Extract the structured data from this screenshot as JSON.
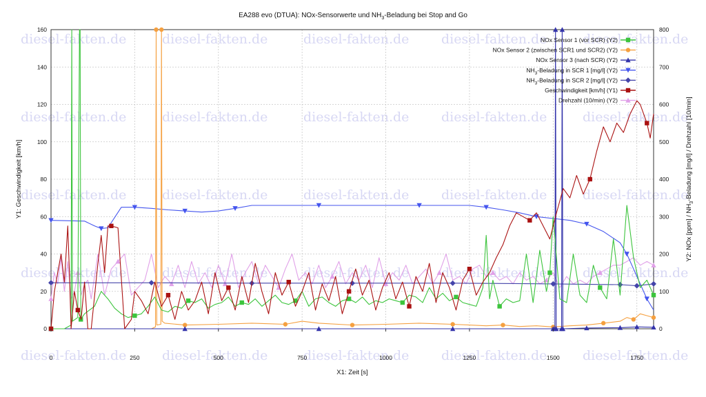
{
  "chart_data": {
    "type": "line",
    "title": "EA288 evo (DTUA): NOx-Sensorwerte und NH3-Beladung bei Stop and Go",
    "xlabel": "X1: Zeit [s]",
    "ylabel_left": "Y1: Geschwindigkeit [km/h]",
    "ylabel_right": "Y2: NOx [ppm] / NH3-Beladung [mg/l] / Drehzahl [10/min]",
    "xlim": [
      0,
      1800
    ],
    "ylim_left": [
      0,
      160
    ],
    "ylim_right": [
      0,
      800
    ],
    "x_ticks": [
      0,
      250,
      500,
      750,
      1000,
      1250,
      1500,
      1750
    ],
    "y_left_ticks": [
      0,
      20,
      40,
      60,
      80,
      100,
      120,
      140,
      160
    ],
    "y_right_ticks": [
      0,
      100,
      200,
      300,
      400,
      500,
      600,
      700,
      800
    ],
    "grid": true,
    "legend_position": "top-right",
    "watermark": "diesel-fakten.de",
    "series": [
      {
        "name": "NOx Sensor 1 (vor SCR) (Y2)",
        "axis": "right",
        "color": "#3cc43c",
        "marker": "square",
        "x": [
          0,
          40,
          60,
          62,
          64,
          80,
          85,
          87,
          89,
          100,
          130,
          150,
          170,
          190,
          210,
          230,
          250,
          270,
          290,
          310,
          330,
          350,
          370,
          390,
          410,
          430,
          450,
          470,
          490,
          510,
          530,
          550,
          570,
          590,
          610,
          630,
          650,
          670,
          690,
          710,
          730,
          750,
          770,
          790,
          810,
          830,
          850,
          870,
          890,
          910,
          930,
          950,
          970,
          990,
          1010,
          1030,
          1050,
          1070,
          1090,
          1110,
          1130,
          1150,
          1170,
          1190,
          1210,
          1230,
          1250,
          1270,
          1290,
          1300,
          1310,
          1320,
          1340,
          1360,
          1380,
          1400,
          1420,
          1440,
          1460,
          1480,
          1490,
          1500,
          1520,
          1540,
          1560,
          1580,
          1600,
          1620,
          1640,
          1660,
          1680,
          1700,
          1720,
          1740,
          1760,
          1780,
          1800
        ],
        "y": [
          0,
          0,
          10,
          800,
          20,
          30,
          800,
          800,
          25,
          40,
          60,
          100,
          80,
          55,
          40,
          30,
          35,
          40,
          60,
          85,
          50,
          45,
          60,
          55,
          75,
          70,
          80,
          55,
          65,
          70,
          85,
          60,
          70,
          65,
          80,
          60,
          75,
          90,
          70,
          65,
          75,
          100,
          60,
          80,
          85,
          70,
          60,
          75,
          80,
          70,
          85,
          65,
          75,
          70,
          80,
          75,
          70,
          90,
          85,
          70,
          110,
          80,
          95,
          75,
          85,
          70,
          65,
          60,
          110,
          250,
          80,
          130,
          60,
          80,
          70,
          75,
          200,
          70,
          210,
          100,
          150,
          300,
          80,
          70,
          200,
          90,
          70,
          170,
          110,
          80,
          240,
          90,
          330,
          190,
          110,
          130,
          90
        ]
      },
      {
        "name": "NOx Sensor 2 (zwischen SCR1 und SCR2) (Y2)",
        "axis": "right",
        "color": "#f5a040",
        "marker": "circle",
        "x": [
          0,
          300,
          312,
          314,
          316,
          328,
          330,
          332,
          340,
          400,
          500,
          600,
          700,
          750,
          800,
          900,
          1000,
          1100,
          1200,
          1250,
          1300,
          1350,
          1400,
          1450,
          1500,
          1550,
          1600,
          1650,
          1700,
          1720,
          1740,
          1760,
          1780,
          1800
        ],
        "y": [
          0,
          0,
          5,
          800,
          10,
          12,
          800,
          20,
          15,
          10,
          12,
          15,
          12,
          20,
          15,
          10,
          12,
          15,
          12,
          10,
          8,
          10,
          6,
          8,
          5,
          8,
          10,
          15,
          20,
          30,
          25,
          40,
          35,
          30
        ]
      },
      {
        "name": "NOx Sensor 3 (nach SCR) (Y2)",
        "axis": "right",
        "color": "#3333aa",
        "marker": "triangle-up",
        "x": [
          0,
          400,
          800,
          1200,
          1500,
          1505,
          1507,
          1509,
          1525,
          1527,
          1529,
          1600,
          1700,
          1750,
          1800
        ],
        "y": [
          0,
          0,
          0,
          0,
          0,
          0,
          800,
          0,
          0,
          800,
          0,
          2,
          3,
          5,
          4
        ]
      },
      {
        "name": "NH3-Beladung in SCR 1 [mg/l] (Y2)",
        "axis": "right",
        "color": "#4455ee",
        "marker": "triangle-down",
        "x": [
          0,
          100,
          130,
          150,
          170,
          210,
          250,
          300,
          350,
          400,
          450,
          500,
          550,
          600,
          700,
          800,
          900,
          1000,
          1100,
          1200,
          1250,
          1300,
          1350,
          1400,
          1450,
          1500,
          1550,
          1600,
          1650,
          1700,
          1720,
          1740,
          1760,
          1780,
          1800
        ],
        "y": [
          290,
          288,
          275,
          268,
          270,
          325,
          325,
          322,
          318,
          315,
          312,
          315,
          322,
          330,
          330,
          330,
          330,
          330,
          330,
          330,
          330,
          325,
          318,
          310,
          300,
          295,
          290,
          280,
          260,
          230,
          200,
          160,
          120,
          80,
          50
        ]
      },
      {
        "name": "NH3-Beladung in SCR 2 [mg/l] (Y2)",
        "axis": "right",
        "color": "#4444aa",
        "marker": "diamond",
        "x": [
          0,
          300,
          600,
          900,
          1200,
          1500,
          1700,
          1750,
          1800
        ],
        "y": [
          123,
          123,
          122,
          122,
          122,
          120,
          118,
          115,
          120
        ]
      },
      {
        "name": "Geschwindigkeit [km/h] (Y1)",
        "axis": "left",
        "color": "#aa1111",
        "marker": "square",
        "x": [
          0,
          10,
          20,
          30,
          40,
          50,
          55,
          60,
          70,
          80,
          90,
          100,
          110,
          120,
          140,
          150,
          160,
          170,
          180,
          200,
          220,
          240,
          250,
          270,
          290,
          310,
          330,
          350,
          370,
          390,
          410,
          430,
          450,
          470,
          490,
          510,
          530,
          550,
          570,
          590,
          610,
          630,
          650,
          670,
          690,
          710,
          730,
          750,
          770,
          790,
          810,
          830,
          850,
          870,
          890,
          910,
          930,
          950,
          970,
          990,
          1010,
          1030,
          1050,
          1070,
          1090,
          1110,
          1130,
          1150,
          1170,
          1190,
          1210,
          1230,
          1250,
          1270,
          1290,
          1310,
          1330,
          1350,
          1370,
          1390,
          1410,
          1430,
          1450,
          1470,
          1490,
          1510,
          1530,
          1550,
          1570,
          1590,
          1610,
          1630,
          1650,
          1670,
          1690,
          1710,
          1730,
          1750,
          1760,
          1780,
          1790,
          1800
        ],
        "y": [
          0,
          20,
          30,
          40,
          25,
          55,
          30,
          0,
          20,
          10,
          5,
          25,
          0,
          0,
          35,
          50,
          30,
          55,
          55,
          54,
          0,
          5,
          20,
          15,
          8,
          25,
          12,
          18,
          5,
          20,
          10,
          15,
          25,
          8,
          30,
          15,
          22,
          10,
          28,
          14,
          35,
          20,
          8,
          30,
          18,
          25,
          12,
          20,
          30,
          10,
          24,
          15,
          28,
          8,
          20,
          32,
          18,
          26,
          10,
          22,
          30,
          16,
          25,
          12,
          28,
          20,
          35,
          14,
          30,
          22,
          10,
          26,
          32,
          18,
          25,
          30,
          38,
          45,
          55,
          62,
          60,
          58,
          62,
          55,
          48,
          62,
          75,
          70,
          82,
          72,
          80,
          95,
          108,
          100,
          110,
          105,
          115,
          122,
          120,
          110,
          102,
          115
        ]
      },
      {
        "name": "Drehzahl (10/min) (Y2)",
        "axis": "right",
        "color": "#e0a0e8",
        "marker": "triangle-up",
        "x": [
          0,
          10,
          20,
          30,
          40,
          50,
          60,
          70,
          80,
          90,
          100,
          110,
          120,
          140,
          160,
          180,
          200,
          220,
          240,
          260,
          280,
          300,
          320,
          340,
          360,
          380,
          400,
          420,
          440,
          460,
          480,
          500,
          520,
          540,
          560,
          580,
          600,
          620,
          640,
          660,
          680,
          700,
          720,
          740,
          760,
          780,
          800,
          820,
          840,
          860,
          880,
          900,
          920,
          940,
          960,
          980,
          1000,
          1020,
          1040,
          1060,
          1080,
          1100,
          1120,
          1140,
          1160,
          1180,
          1200,
          1220,
          1240,
          1260,
          1280,
          1300,
          1320,
          1340,
          1360,
          1380,
          1400,
          1420,
          1440,
          1460,
          1480,
          1500,
          1520,
          1540,
          1560,
          1580,
          1600,
          1620,
          1640,
          1660,
          1680,
          1700,
          1720,
          1740,
          1760,
          1780,
          1800
        ],
        "y": [
          80,
          150,
          120,
          190,
          100,
          180,
          80,
          100,
          150,
          90,
          120,
          130,
          80,
          200,
          90,
          160,
          180,
          200,
          90,
          110,
          130,
          200,
          110,
          140,
          120,
          170,
          110,
          180,
          120,
          150,
          110,
          170,
          120,
          200,
          110,
          150,
          180,
          120,
          170,
          140,
          110,
          160,
          200,
          130,
          150,
          120,
          170,
          110,
          140,
          180,
          120,
          150,
          130,
          170,
          110,
          190,
          120,
          150,
          130,
          170,
          120,
          140,
          160,
          120,
          150,
          200,
          130,
          140,
          120,
          160,
          170,
          140,
          150,
          130,
          140,
          120,
          150,
          130,
          140,
          120,
          130,
          150,
          110,
          140,
          120,
          130,
          120,
          140,
          150,
          160,
          170,
          170,
          180,
          190,
          170,
          180,
          170
        ]
      }
    ]
  }
}
